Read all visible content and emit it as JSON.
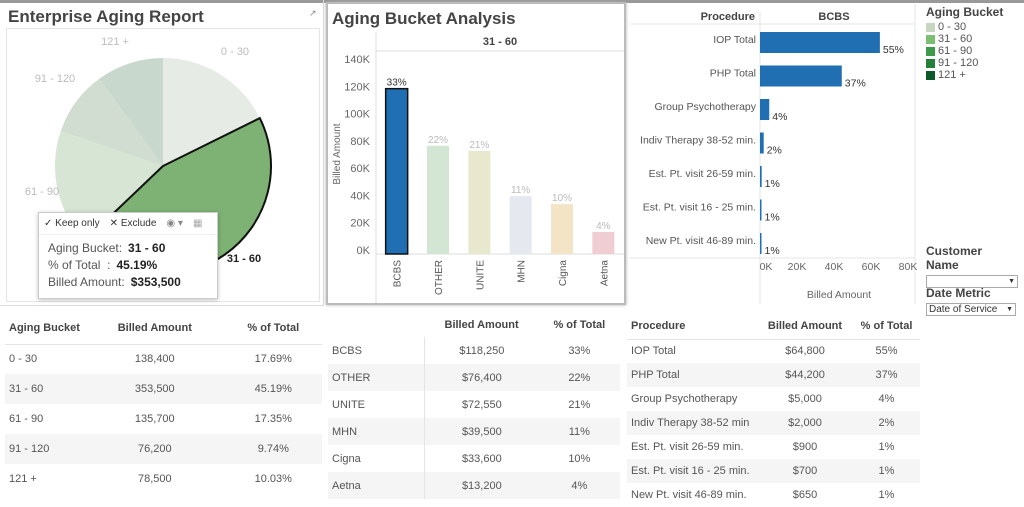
{
  "pie": {
    "title": "Enterprise Aging Report",
    "selected": "31 - 60",
    "slices": [
      {
        "label": "0 - 30",
        "value": 138400,
        "color": "#e6ebe5"
      },
      {
        "label": "31 - 60",
        "value": 353500,
        "color": "#7db274"
      },
      {
        "label": "61 - 90",
        "value": 135700,
        "color": "#d7e5d5"
      },
      {
        "label": "91 - 120",
        "value": 76200,
        "color": "#d0ddd0"
      },
      {
        "label": "121 +",
        "value": 78500,
        "color": "#c8d8cc"
      }
    ]
  },
  "bar_chart": {
    "title": "Aging Bucket Analysis",
    "header": "31 - 60",
    "ylabel": "Billed Amount",
    "yticks": [
      "0K",
      "20K",
      "40K",
      "60K",
      "80K",
      "100K",
      "120K",
      "140K"
    ],
    "ymax": 140000,
    "bars": [
      {
        "label": "BCBS",
        "value": 118250,
        "pct": "33%",
        "color": "#1f6fb2",
        "selected": true
      },
      {
        "label": "OTHER",
        "value": 76400,
        "pct": "22%",
        "color": "#d3e6d3"
      },
      {
        "label": "UNITE",
        "value": 72550,
        "pct": "21%",
        "color": "#e8e8cf"
      },
      {
        "label": "MHN",
        "value": 39500,
        "pct": "11%",
        "color": "#e6e8f0"
      },
      {
        "label": "Cigna",
        "value": 33600,
        "pct": "10%",
        "color": "#f4e4c6"
      },
      {
        "label": "Aetna",
        "value": 13200,
        "pct": "4%",
        "color": "#f0cdd3"
      }
    ]
  },
  "procedure_chart": {
    "col_header": "Procedure",
    "header": "BCBS",
    "xlabel": "Billed Amount",
    "xticks": [
      "0K",
      "20K",
      "40K",
      "60K",
      "80K"
    ],
    "xmax": 80000,
    "color": "#1f6fb2",
    "rows": [
      {
        "label": "IOP Total",
        "value": 64800,
        "pct": "55%"
      },
      {
        "label": "PHP Total",
        "value": 44200,
        "pct": "37%"
      },
      {
        "label": "Group Psychotherapy",
        "value": 5000,
        "pct": "4%"
      },
      {
        "label": "Indiv Therapy 38-52 min.",
        "value": 2000,
        "pct": "2%"
      },
      {
        "label": "Est. Pt. visit 26-59 min.",
        "value": 900,
        "pct": "1%"
      },
      {
        "label": "Est. Pt. visit 16 - 25 min.",
        "value": 700,
        "pct": "1%"
      },
      {
        "label": "New Pt. visit 46-89 min.",
        "value": 650,
        "pct": "1%"
      }
    ]
  },
  "legend": {
    "title": "Aging Bucket",
    "items": [
      {
        "label": "0 - 30",
        "color": "#c6d6c0"
      },
      {
        "label": "31 - 60",
        "color": "#7cbf73"
      },
      {
        "label": "61 - 90",
        "color": "#3c9a48"
      },
      {
        "label": "91 - 120",
        "color": "#23803a"
      },
      {
        "label": "121 +",
        "color": "#0d5a28"
      }
    ]
  },
  "filters": {
    "customer_name": {
      "title": "Customer Name",
      "value": ""
    },
    "date_metric": {
      "title": "Date Metric",
      "value": "Date of Service"
    }
  },
  "tooltip": {
    "keep_only": "Keep only",
    "exclude": "Exclude",
    "rows": [
      {
        "key": "Aging Bucket:",
        "value": "31 - 60"
      },
      {
        "key": "% of Total  :",
        "value": "45.19%"
      },
      {
        "key": "Billed Amount:",
        "value": "$353,500"
      }
    ]
  },
  "aging_table": {
    "headers": [
      "Aging Bucket",
      "Billed Amount",
      "% of Total"
    ],
    "rows": [
      [
        "0 - 30",
        "138,400",
        "17.69%"
      ],
      [
        "31 - 60",
        "353,500",
        "45.19%"
      ],
      [
        "61 - 90",
        "135,700",
        "17.35%"
      ],
      [
        "91 - 120",
        "76,200",
        "9.74%"
      ],
      [
        "121 +",
        "78,500",
        "10.03%"
      ]
    ]
  },
  "payer_table": {
    "headers": [
      "Billed Amount",
      "% of Total"
    ],
    "rows": [
      [
        "BCBS",
        "$118,250",
        "33%"
      ],
      [
        "OTHER",
        "$76,400",
        "22%"
      ],
      [
        "UNITE",
        "$72,550",
        "21%"
      ],
      [
        "MHN",
        "$39,500",
        "11%"
      ],
      [
        "Cigna",
        "$33,600",
        "10%"
      ],
      [
        "Aetna",
        "$13,200",
        "4%"
      ]
    ]
  },
  "procedure_table": {
    "headers": [
      "Procedure",
      "Billed Amount",
      "% of Total"
    ],
    "rows": [
      [
        "IOP Total",
        "$64,800",
        "55%"
      ],
      [
        "PHP Total",
        "$44,200",
        "37%"
      ],
      [
        "Group Psychotherapy",
        "$5,000",
        "4%"
      ],
      [
        "Indiv Therapy 38-52 min",
        "$2,000",
        "2%"
      ],
      [
        "Est. Pt. visit 26-59 min.",
        "$900",
        "1%"
      ],
      [
        "Est. Pt. visit 16 - 25 min.",
        "$700",
        "1%"
      ],
      [
        "New Pt. visit 46-89 min.",
        "$650",
        "1%"
      ]
    ]
  }
}
